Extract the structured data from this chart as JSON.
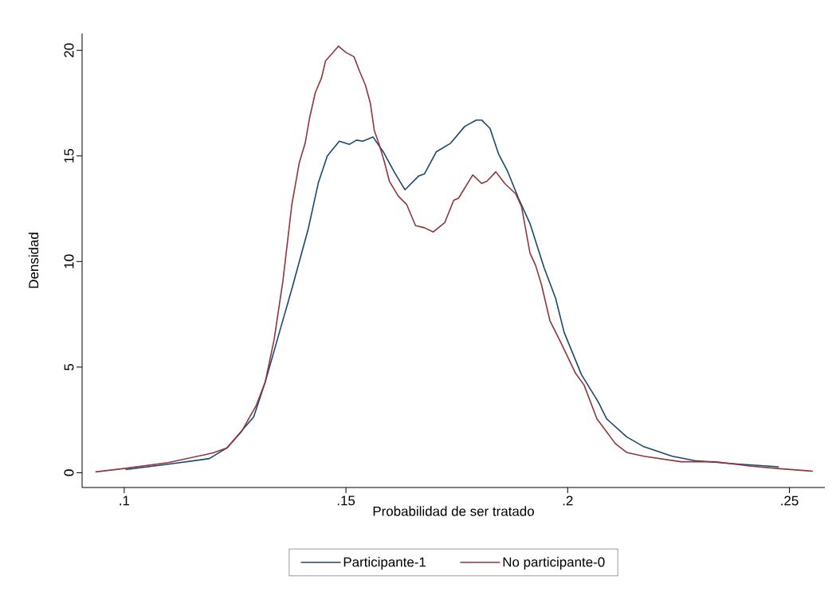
{
  "chart_data": {
    "type": "line",
    "xlabel": "Probabilidad de ser tratado",
    "ylabel": "Densidad",
    "xlim": [
      0.0905,
      0.258
    ],
    "ylim": [
      -0.7,
      20.8
    ],
    "xticks": [
      {
        "value": 0.1,
        "label": ".1"
      },
      {
        "value": 0.15,
        "label": ".15"
      },
      {
        "value": 0.2,
        "label": ".2"
      },
      {
        "value": 0.25,
        "label": ".25"
      }
    ],
    "yticks": [
      0,
      5,
      10,
      15,
      20
    ],
    "legend": "bottom",
    "series": [
      {
        "name": "Participante-1",
        "color": "#1a476f",
        "x": [
          0.1003,
          0.1099,
          0.1192,
          0.1232,
          0.1292,
          0.1318,
          0.1352,
          0.1378,
          0.1415,
          0.1438,
          0.1458,
          0.1485,
          0.1508,
          0.1524,
          0.1538,
          0.1561,
          0.1584,
          0.161,
          0.1633,
          0.1664,
          0.1677,
          0.1704,
          0.1736,
          0.1768,
          0.1794,
          0.1806,
          0.1825,
          0.1844,
          0.1864,
          0.1889,
          0.1915,
          0.1947,
          0.1973,
          0.1992,
          0.2031,
          0.2069,
          0.2088,
          0.2133,
          0.2172,
          0.2236,
          0.2287,
          0.2383,
          0.2476
        ],
        "values": [
          0.15,
          0.4,
          0.67,
          1.18,
          2.65,
          4.3,
          6.8,
          8.7,
          11.55,
          13.75,
          15.0,
          15.7,
          15.55,
          15.75,
          15.7,
          15.9,
          15.2,
          14.2,
          13.4,
          14.05,
          14.15,
          15.2,
          15.6,
          16.4,
          16.7,
          16.7,
          16.3,
          15.1,
          14.3,
          13.0,
          11.8,
          9.7,
          8.25,
          6.65,
          4.65,
          3.35,
          2.55,
          1.7,
          1.23,
          0.78,
          0.57,
          0.41,
          0.28
        ]
      },
      {
        "name": "No participante-0",
        "color": "#90353b",
        "x": [
          0.0935,
          0.1,
          0.1099,
          0.1199,
          0.1232,
          0.1265,
          0.1298,
          0.1318,
          0.1338,
          0.1358,
          0.1378,
          0.1395,
          0.1408,
          0.1418,
          0.1431,
          0.1445,
          0.1454,
          0.1471,
          0.1483,
          0.15,
          0.1518,
          0.1531,
          0.1544,
          0.1555,
          0.1564,
          0.1574,
          0.1587,
          0.1598,
          0.1618,
          0.1637,
          0.1657,
          0.1677,
          0.1697,
          0.1723,
          0.1743,
          0.1754,
          0.1786,
          0.1806,
          0.1818,
          0.1838,
          0.1858,
          0.1883,
          0.1896,
          0.1915,
          0.1928,
          0.1941,
          0.196,
          0.1986,
          0.2018,
          0.2037,
          0.2066,
          0.2108,
          0.2133,
          0.2172,
          0.2255,
          0.2332,
          0.2415,
          0.2479,
          0.2553
        ],
        "values": [
          0.04,
          0.2,
          0.48,
          0.93,
          1.18,
          1.96,
          3.2,
          4.3,
          6.3,
          9.1,
          12.7,
          14.7,
          15.6,
          16.8,
          18.0,
          18.7,
          19.5,
          19.9,
          20.2,
          19.9,
          19.7,
          19.0,
          18.35,
          17.5,
          16.2,
          15.6,
          14.7,
          13.8,
          13.1,
          12.7,
          11.7,
          11.6,
          11.4,
          11.85,
          12.9,
          13.0,
          14.1,
          13.7,
          13.8,
          14.25,
          13.7,
          13.2,
          12.6,
          10.4,
          9.8,
          8.9,
          7.2,
          6.1,
          4.7,
          4.15,
          2.55,
          1.37,
          0.96,
          0.78,
          0.52,
          0.52,
          0.31,
          0.19,
          0.07
        ]
      }
    ]
  }
}
